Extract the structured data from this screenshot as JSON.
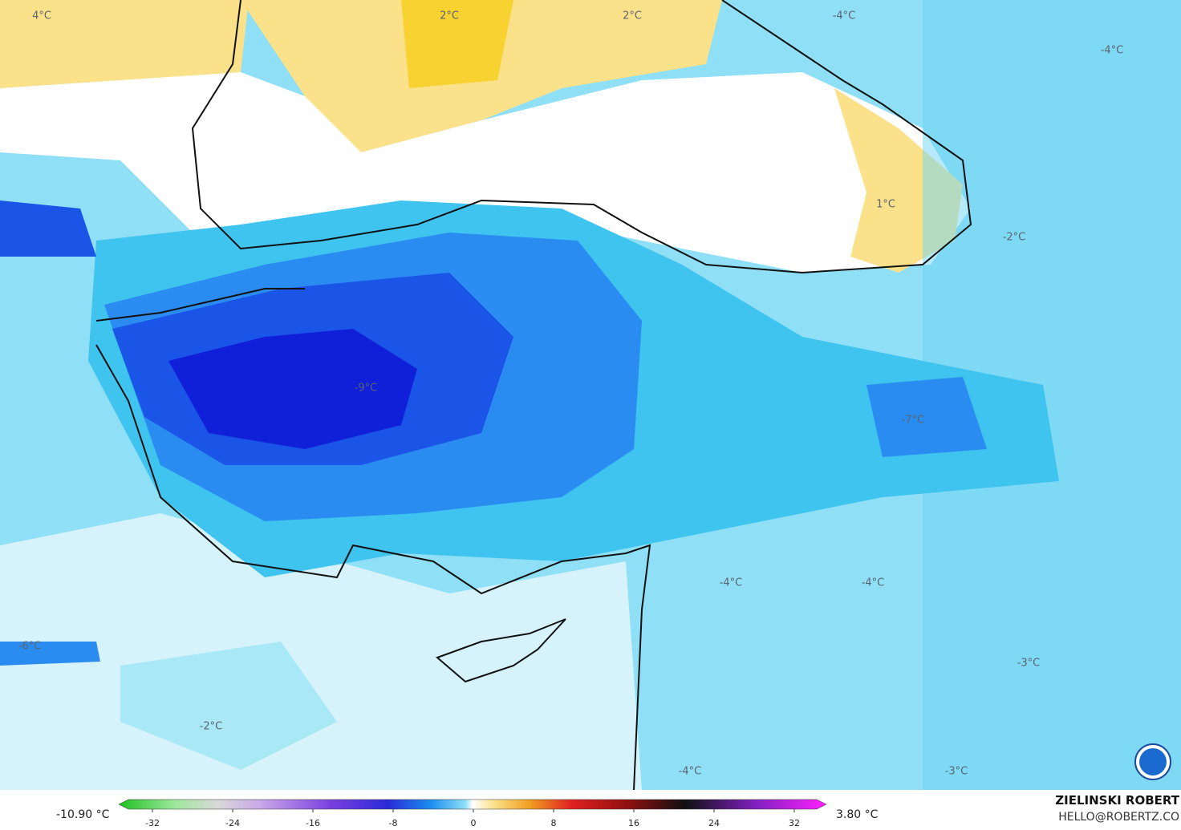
{
  "map": {
    "labels": [
      "4°C",
      "2°C",
      "2°C",
      "-4°C",
      "-4°C",
      "1°C",
      "-2°C",
      "-9°C",
      "-7°C",
      "-4°C",
      "-4°C",
      "-6°C",
      "-2°C",
      "-3°C",
      "-4°C",
      "-3°C"
    ]
  },
  "colorbar": {
    "min_label": "-10.90 °C",
    "max_label": "3.80 °C",
    "ticks": [
      -32,
      -24,
      -16,
      -8,
      0,
      8,
      16,
      24,
      32
    ]
  },
  "credit": {
    "name": "ZIELINSKI ROBERT",
    "site": "HELLO@ROBERTZ.CO"
  }
}
